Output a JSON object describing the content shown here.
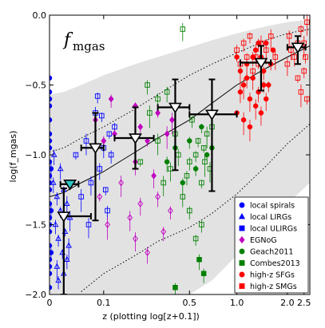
{
  "chart_data": {
    "type": "scatter",
    "title_math_main": "f",
    "title_math_sub": "mgas",
    "xlabel": "z (plotting log[z+0.1])",
    "ylabel": "log(f_mgas)",
    "x_scale": "log(z+0.1)",
    "xlim": [
      0,
      2.7
    ],
    "ylim": [
      -2.0,
      0.0
    ],
    "x_ticks": [
      {
        "z": 0,
        "label": "0"
      },
      {
        "z": 0.1,
        "label": "0.1"
      },
      {
        "z": 0.5,
        "label": "0.5"
      },
      {
        "z": 1.0,
        "label": "1.0"
      },
      {
        "z": 2.0,
        "label": "2.0"
      },
      {
        "z": 2.5,
        "label": "2.5"
      }
    ],
    "y_ticks": [
      {
        "v": -2.0,
        "label": "−2.0"
      },
      {
        "v": -1.5,
        "label": "−1.5"
      },
      {
        "v": -1.0,
        "label": "−1.0"
      },
      {
        "v": -0.5,
        "label": "−0.5"
      },
      {
        "v": 0.0,
        "label": "0.0"
      }
    ],
    "band": {
      "z": [
        0,
        0.02,
        0.05,
        0.1,
        0.2,
        0.3,
        0.5,
        0.7,
        1.0,
        1.5,
        2.0,
        2.7
      ],
      "upper": [
        -0.57,
        -0.55,
        -0.5,
        -0.43,
        -0.35,
        -0.3,
        -0.23,
        -0.18,
        -0.13,
        -0.08,
        -0.05,
        -0.03
      ],
      "lower": [
        -2.0,
        -2.0,
        -2.0,
        -2.0,
        -2.0,
        -2.0,
        -2.0,
        -1.9,
        -1.72,
        -1.5,
        -1.35,
        -1.2
      ]
    },
    "trend_line": {
      "z": [
        0,
        0.02,
        0.05,
        0.1,
        0.2,
        0.3,
        0.5,
        0.7,
        1.0,
        1.5,
        2.0,
        2.7
      ],
      "y": [
        -1.3,
        -1.27,
        -1.2,
        -1.12,
        -0.98,
        -0.88,
        -0.75,
        -0.63,
        -0.5,
        -0.38,
        -0.3,
        -0.22
      ]
    },
    "upper_dotted": {
      "z": [
        0,
        0.02,
        0.05,
        0.1,
        0.2,
        0.3,
        0.5,
        0.7,
        1.0,
        1.5,
        2.0,
        2.7
      ],
      "y": [
        -0.98,
        -0.95,
        -0.88,
        -0.8,
        -0.67,
        -0.57,
        -0.43,
        -0.35,
        -0.27,
        -0.18,
        -0.13,
        -0.1
      ]
    },
    "lower_dotted": {
      "z": [
        0.05,
        0.1,
        0.2,
        0.3,
        0.5,
        0.7,
        1.0,
        1.5,
        2.0,
        2.7
      ],
      "y": [
        -1.98,
        -1.85,
        -1.72,
        -1.62,
        -1.52,
        -1.42,
        -1.28,
        -1.08,
        -0.92,
        -0.78
      ]
    },
    "binned_medians": [
      {
        "z": 0.02,
        "y": -1.44,
        "xerr": [
          0.0,
          0.05
        ],
        "yerr": [
          0.56,
          0.2
        ],
        "color": "#000000"
      },
      {
        "z": 0.03,
        "y": -1.21,
        "xerr": [
          0.015,
          0.015
        ],
        "yerr": [
          0.0,
          0.0
        ],
        "color": "#2ec4c4"
      },
      {
        "z": 0.08,
        "y": -0.95,
        "xerr": [
          0.03,
          0.02
        ],
        "yerr": [
          0.52,
          0.25
        ],
        "color": "#000000"
      },
      {
        "z": 0.2,
        "y": -0.88,
        "xerr": [
          0.07,
          0.08
        ],
        "yerr": [
          0.22,
          0.22
        ],
        "color": "#000000"
      },
      {
        "z": 0.4,
        "y": -0.66,
        "xerr": [
          0.1,
          0.1
        ],
        "yerr": [
          0.45,
          0.2
        ],
        "color": "#000000"
      },
      {
        "z": 0.7,
        "y": -0.71,
        "xerr": [
          0.2,
          0.3
        ],
        "yerr": [
          0.55,
          0.25
        ],
        "color": "#000000"
      },
      {
        "z": 1.4,
        "y": -0.34,
        "xerr": [
          0.35,
          0.2
        ],
        "yerr": [
          0.2,
          0.12
        ],
        "color": "#000000"
      },
      {
        "z": 2.3,
        "y": -0.23,
        "xerr": [
          0.3,
          0.25
        ],
        "yerr": [
          0.12,
          0.08
        ],
        "color": "#000000"
      }
    ],
    "series": [
      {
        "name": "local spirals",
        "marker": "circle",
        "color": "#0000ff",
        "filled": true,
        "points": [
          [
            0,
            -0.45
          ],
          [
            0,
            -0.55
          ],
          [
            0,
            -0.65
          ],
          [
            0,
            -0.75
          ],
          [
            0,
            -0.85
          ],
          [
            0,
            -0.95
          ],
          [
            0,
            -1.05
          ],
          [
            0,
            -1.15
          ],
          [
            0,
            -1.25
          ],
          [
            0,
            -1.35
          ],
          [
            0,
            -1.45
          ],
          [
            0,
            -1.55
          ],
          [
            0,
            -1.65
          ],
          [
            0,
            -1.75
          ],
          [
            0,
            -1.85
          ],
          [
            0,
            -1.95
          ],
          [
            0,
            -0.6
          ],
          [
            0,
            -0.9
          ],
          [
            0,
            -1.2
          ],
          [
            0,
            -1.5
          ],
          [
            0,
            -1.8
          ],
          [
            0.002,
            -1.1
          ],
          [
            0.002,
            -1.4
          ],
          [
            0.002,
            -1.7
          ]
        ]
      },
      {
        "name": "local LIRGs",
        "marker": "triangle",
        "color": "#0000ff",
        "filled": false,
        "points": [
          [
            0.005,
            -1.2
          ],
          [
            0.008,
            -1.5
          ],
          [
            0.01,
            -1.3
          ],
          [
            0.012,
            -1.6
          ],
          [
            0.015,
            -1.4
          ],
          [
            0.018,
            -1.7
          ],
          [
            0.02,
            -1.25
          ],
          [
            0.022,
            -1.55
          ],
          [
            0.025,
            -1.35
          ],
          [
            0.028,
            -1.65
          ],
          [
            0.03,
            -1.45
          ],
          [
            0.01,
            -1.8
          ],
          [
            0.02,
            -1.85
          ],
          [
            0.015,
            -1.1
          ],
          [
            0.006,
            -1.0
          ],
          [
            0.025,
            -1.75
          ],
          [
            0.012,
            -1.9
          ]
        ]
      },
      {
        "name": "local ULIRGs",
        "marker": "square",
        "color": "#0000ff",
        "filled": false,
        "points": [
          [
            0.04,
            -1.0
          ],
          [
            0.05,
            -1.3
          ],
          [
            0.06,
            -0.9
          ],
          [
            0.065,
            -1.5
          ],
          [
            0.07,
            -1.2
          ],
          [
            0.08,
            -0.7
          ],
          [
            0.09,
            -1.1
          ],
          [
            0.1,
            -0.95
          ],
          [
            0.11,
            -1.4
          ],
          [
            0.12,
            -1.0
          ],
          [
            0.13,
            -0.8
          ],
          [
            0.085,
            -0.58
          ],
          [
            0.095,
            -0.72
          ],
          [
            0.105,
            -1.25
          ],
          [
            0.115,
            -0.85
          ]
        ]
      },
      {
        "name": "EGNoG",
        "marker": "diamond",
        "color": "#c000c0",
        "filled": true,
        "points": [
          [
            0.08,
            -0.75
          ],
          [
            0.1,
            -0.9
          ],
          [
            0.12,
            -0.6
          ],
          [
            0.13,
            -0.85
          ],
          [
            0.2,
            -0.65
          ],
          [
            0.22,
            -0.8
          ],
          [
            0.25,
            -0.9
          ],
          [
            0.3,
            -0.7
          ],
          [
            0.35,
            -0.85
          ],
          [
            0.38,
            -0.75
          ],
          [
            0.2,
            -1.05
          ],
          [
            0.28,
            -1.15
          ]
        ]
      },
      {
        "name": "EGNoG",
        "marker": "diamond",
        "color": "#c000c0",
        "filled": false,
        "points": [
          [
            0.09,
            -1.3
          ],
          [
            0.11,
            -1.5
          ],
          [
            0.15,
            -1.2
          ],
          [
            0.18,
            -1.45
          ],
          [
            0.2,
            -1.6
          ],
          [
            0.22,
            -1.35
          ],
          [
            0.25,
            -1.7
          ],
          [
            0.3,
            -1.3
          ],
          [
            0.33,
            -1.55
          ],
          [
            0.37,
            -1.4
          ]
        ]
      },
      {
        "name": "Geach2011",
        "marker": "circle",
        "color": "#008000",
        "filled": true,
        "points": [
          [
            0.35,
            -1.05
          ],
          [
            0.4,
            -0.95
          ],
          [
            0.45,
            -1.2
          ],
          [
            0.5,
            -0.9
          ],
          [
            0.55,
            -1.1
          ],
          [
            0.6,
            -0.8
          ],
          [
            0.65,
            -1.0
          ],
          [
            0.7,
            -0.95
          ]
        ]
      },
      {
        "name": "Combes2013",
        "marker": "square",
        "color": "#008000",
        "filled": false,
        "points": [
          [
            0.22,
            -1.05
          ],
          [
            0.26,
            -0.7
          ],
          [
            0.3,
            -0.9
          ],
          [
            0.33,
            -1.2
          ],
          [
            0.37,
            -1.1
          ],
          [
            0.4,
            -0.85
          ],
          [
            0.42,
            -1.0
          ],
          [
            0.45,
            -1.3
          ],
          [
            0.48,
            -1.15
          ],
          [
            0.5,
            -1.05
          ],
          [
            0.52,
            -0.75
          ],
          [
            0.55,
            -1.0
          ],
          [
            0.57,
            -0.9
          ],
          [
            0.6,
            -1.2
          ],
          [
            0.62,
            -0.95
          ],
          [
            0.63,
            -1.05
          ],
          [
            0.65,
            -0.85
          ],
          [
            0.68,
            -1.1
          ],
          [
            0.7,
            -0.8
          ],
          [
            0.45,
            -0.1
          ],
          [
            0.3,
            -0.6
          ],
          [
            0.35,
            -0.55
          ],
          [
            0.25,
            -0.5
          ],
          [
            0.5,
            -1.4
          ],
          [
            0.6,
            -1.5
          ],
          [
            0.55,
            -1.6
          ]
        ]
      },
      {
        "name": "Combes2013",
        "marker": "square",
        "color": "#008000",
        "filled": true,
        "points": [
          [
            0.58,
            -1.75
          ],
          [
            0.62,
            -1.85
          ],
          [
            0.4,
            -1.95
          ]
        ]
      },
      {
        "name": "high-z SFGs",
        "marker": "circle",
        "color": "#ff0000",
        "filled": true,
        "points": [
          [
            1.0,
            -0.3
          ],
          [
            1.05,
            -0.4
          ],
          [
            1.1,
            -0.5
          ],
          [
            1.15,
            -0.35
          ],
          [
            1.2,
            -0.6
          ],
          [
            1.25,
            -0.45
          ],
          [
            1.3,
            -0.25
          ],
          [
            1.35,
            -0.55
          ],
          [
            1.4,
            -0.3
          ],
          [
            1.45,
            -0.4
          ],
          [
            1.5,
            -0.2
          ],
          [
            1.55,
            -0.5
          ],
          [
            1.6,
            -0.35
          ],
          [
            1.65,
            -0.25
          ],
          [
            1.0,
            -0.7
          ],
          [
            1.1,
            -0.75
          ],
          [
            1.2,
            -0.8
          ],
          [
            1.3,
            -0.65
          ],
          [
            1.4,
            -0.7
          ],
          [
            1.5,
            -0.6
          ],
          [
            1.05,
            -0.55
          ],
          [
            1.15,
            -0.45
          ],
          [
            1.25,
            -0.3
          ],
          [
            1.35,
            -0.2
          ],
          [
            1.45,
            -0.5
          ]
        ]
      },
      {
        "name": "high-z SGMs",
        "marker": "square",
        "color": "#ff0000",
        "filled": false,
        "points": [
          [
            1.0,
            -0.25
          ],
          [
            1.05,
            -0.35
          ],
          [
            1.1,
            -0.2
          ],
          [
            1.15,
            -0.3
          ],
          [
            1.2,
            -0.15
          ],
          [
            1.25,
            -0.4
          ],
          [
            1.3,
            -0.3
          ],
          [
            1.35,
            -0.35
          ],
          [
            1.4,
            -0.2
          ],
          [
            1.5,
            -0.25
          ],
          [
            1.6,
            -0.15
          ],
          [
            1.7,
            -0.3
          ],
          [
            2.0,
            -0.35
          ],
          [
            2.05,
            -0.15
          ],
          [
            2.1,
            -0.25
          ],
          [
            2.2,
            -0.3
          ],
          [
            2.3,
            -0.2
          ],
          [
            2.4,
            -0.1
          ],
          [
            2.5,
            -0.4
          ],
          [
            2.55,
            -0.3
          ],
          [
            2.6,
            -0.6
          ],
          [
            2.3,
            -0.45
          ],
          [
            2.4,
            -0.55
          ],
          [
            2.5,
            -0.2
          ],
          [
            2.6,
            -0.05
          ]
        ]
      }
    ],
    "legend": {
      "location": "lower-right",
      "entries": [
        {
          "label": "local spirals",
          "marker": "circle",
          "color": "#0000ff",
          "filled": true
        },
        {
          "label": "local LIRGs",
          "marker": "triangle",
          "color": "#0000ff",
          "filled": true
        },
        {
          "label": "local ULIRGs",
          "marker": "square",
          "color": "#0000ff",
          "filled": true
        },
        {
          "label": "EGNoG",
          "marker": "diamond",
          "color": "#c000c0",
          "filled": true
        },
        {
          "label": "Geach2011",
          "marker": "circle",
          "color": "#008000",
          "filled": true
        },
        {
          "label": "Combes2013",
          "marker": "square",
          "color": "#008000",
          "filled": true
        },
        {
          "label": "high-z SFGs",
          "marker": "circle",
          "color": "#ff0000",
          "filled": true
        },
        {
          "label": "high-z SMGs",
          "marker": "square",
          "color": "#ff0000",
          "filled": true
        }
      ]
    }
  }
}
